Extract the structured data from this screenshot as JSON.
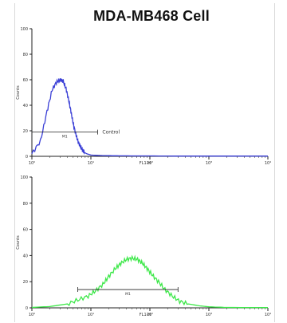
{
  "chart_data": [
    {
      "type": "area",
      "title": "MDA-MB468 Cell",
      "xlabel": "FL1-H",
      "ylabel": "Counts",
      "xscale": "log",
      "xlim": [
        1,
        10000
      ],
      "ylim": [
        0,
        100
      ],
      "x_tick_labels": [
        "10⁰",
        "10¹",
        "10²",
        "10³",
        "10⁴"
      ],
      "y_tick_labels": [
        "0",
        "20",
        "40",
        "60",
        "80",
        "100"
      ],
      "series": [
        {
          "color": "#3a3fd6",
          "x": [
            1,
            1.4,
            1.8,
            2.2,
            2.6,
            3.0,
            3.4,
            3.8,
            4.2,
            4.6,
            5.0,
            5.5,
            6.0,
            6.6,
            7.2,
            7.8,
            8.5,
            9.3,
            10,
            12,
            15,
            20,
            30,
            60,
            100,
            300,
            1000,
            3000,
            10000
          ],
          "y": [
            2,
            12,
            35,
            52,
            58,
            60,
            59,
            53,
            44,
            35,
            26,
            18,
            12,
            8,
            5,
            3,
            2,
            1.5,
            1,
            0.8,
            0.6,
            0.5,
            0.4,
            0.3,
            0.3,
            0.2,
            0.2,
            0.2,
            0.2
          ],
          "gate": {
            "label": "M1",
            "x_range": [
              1,
              13
            ]
          },
          "annotation": "Control"
        },
        {
          "color": "#3ee84a",
          "x": [
            1,
            2,
            4,
            6,
            9,
            12,
            16,
            20,
            26,
            32,
            40,
            50,
            62,
            75,
            90,
            110,
            140,
            180,
            240,
            320,
            450,
            700,
            1000,
            2000,
            10000
          ],
          "y": [
            0.3,
            1,
            3,
            6,
            9,
            13,
            18,
            24,
            30,
            34,
            37,
            38,
            37,
            34,
            30,
            25,
            20,
            14,
            9,
            5,
            3,
            1.5,
            0.8,
            0.3,
            0.2
          ],
          "gate": {
            "label": "M1",
            "x_range": [
              6,
              300
            ]
          }
        }
      ]
    }
  ]
}
